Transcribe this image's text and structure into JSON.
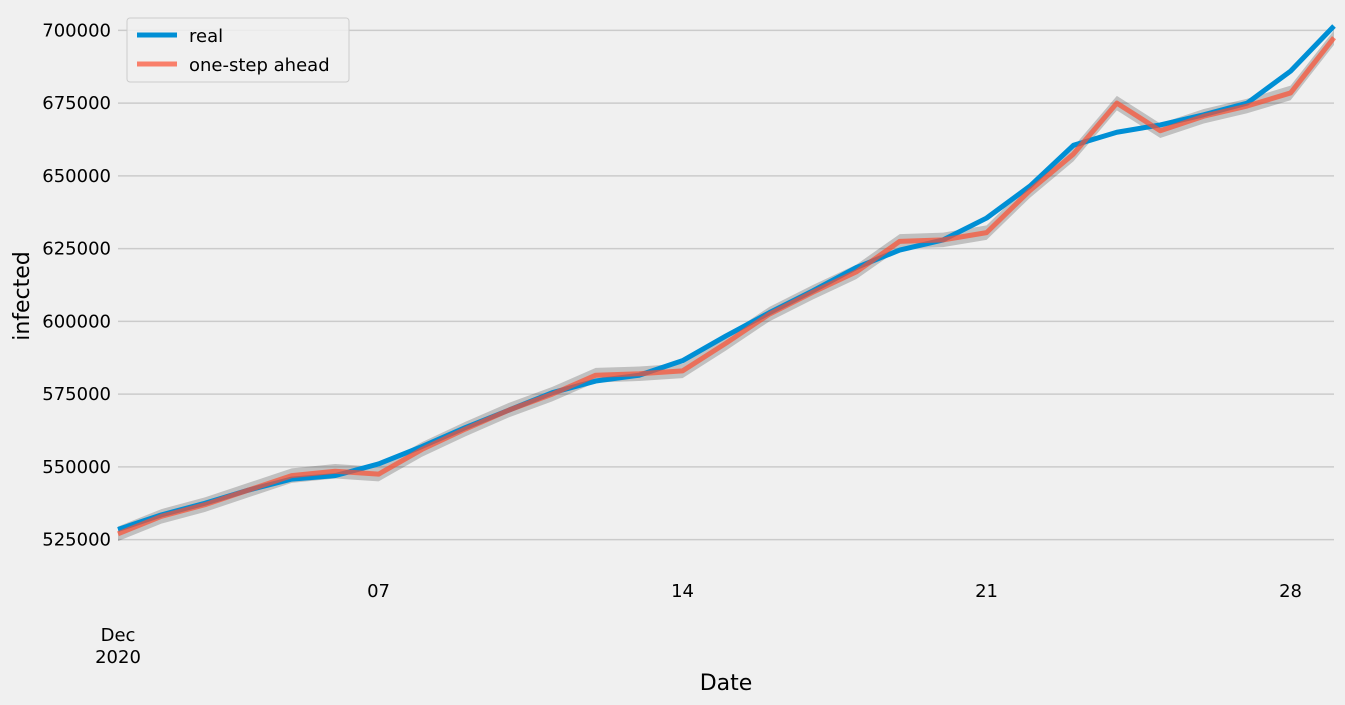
{
  "chart_data": {
    "type": "line",
    "xlabel": "Date",
    "ylabel": "infected",
    "x_axis": {
      "date_range": [
        "2020-12-01",
        "2020-12-29"
      ],
      "ticks": [
        {
          "date": "2020-12-07",
          "label": "07"
        },
        {
          "date": "2020-12-14",
          "label": "14"
        },
        {
          "date": "2020-12-21",
          "label": "21"
        },
        {
          "date": "2020-12-28",
          "label": "28"
        }
      ],
      "start_label_line1": "Dec",
      "start_label_line2": "2020"
    },
    "ylim": [
      518000,
      707000
    ],
    "yticks": [
      525000,
      550000,
      575000,
      600000,
      625000,
      650000,
      675000,
      700000
    ],
    "grid": "horizontal",
    "legend": {
      "position": "top-left"
    },
    "dates": [
      "2020-12-01",
      "2020-12-02",
      "2020-12-03",
      "2020-12-04",
      "2020-12-05",
      "2020-12-06",
      "2020-12-07",
      "2020-12-08",
      "2020-12-09",
      "2020-12-10",
      "2020-12-11",
      "2020-12-12",
      "2020-12-13",
      "2020-12-14",
      "2020-12-15",
      "2020-12-16",
      "2020-12-17",
      "2020-12-18",
      "2020-12-19",
      "2020-12-20",
      "2020-12-21",
      "2020-12-22",
      "2020-12-23",
      "2020-12-24",
      "2020-12-25",
      "2020-12-26",
      "2020-12-27",
      "2020-12-28",
      "2020-12-29"
    ],
    "series": [
      {
        "name": "real",
        "color": "#008fd5",
        "values": [
          528500,
          533500,
          537500,
          542000,
          545800,
          547000,
          551000,
          557000,
          563500,
          569500,
          575500,
          579500,
          581500,
          586500,
          595000,
          603000,
          610500,
          618500,
          624500,
          628000,
          635500,
          646500,
          660500,
          665000,
          667500,
          671000,
          675000,
          686000,
          701500
        ]
      },
      {
        "name": "one-step ahead",
        "color": "#fc4f30",
        "values": [
          527000,
          533000,
          537000,
          542000,
          547000,
          548500,
          547500,
          556000,
          563000,
          569500,
          575000,
          581500,
          582000,
          583000,
          592500,
          602500,
          610000,
          617000,
          627500,
          628000,
          630500,
          645000,
          657500,
          675000,
          665500,
          670500,
          674000,
          678500,
          697500
        ]
      }
    ],
    "confidence_band": {
      "color": "#000000",
      "lower": [
        524500,
        530500,
        534500,
        539500,
        544500,
        546000,
        545000,
        553500,
        560500,
        567000,
        572500,
        579000,
        579500,
        580500,
        590000,
        600000,
        607500,
        614500,
        625000,
        625500,
        628000,
        642500,
        655000,
        672500,
        663000,
        668000,
        671500,
        676000,
        695000
      ],
      "upper": [
        529500,
        535500,
        539500,
        544500,
        549500,
        551000,
        550000,
        558500,
        565500,
        572000,
        577500,
        584000,
        584500,
        585500,
        595000,
        605000,
        612500,
        619500,
        630000,
        630500,
        633000,
        647500,
        660000,
        677500,
        668000,
        673000,
        676500,
        681000,
        700000
      ]
    }
  }
}
